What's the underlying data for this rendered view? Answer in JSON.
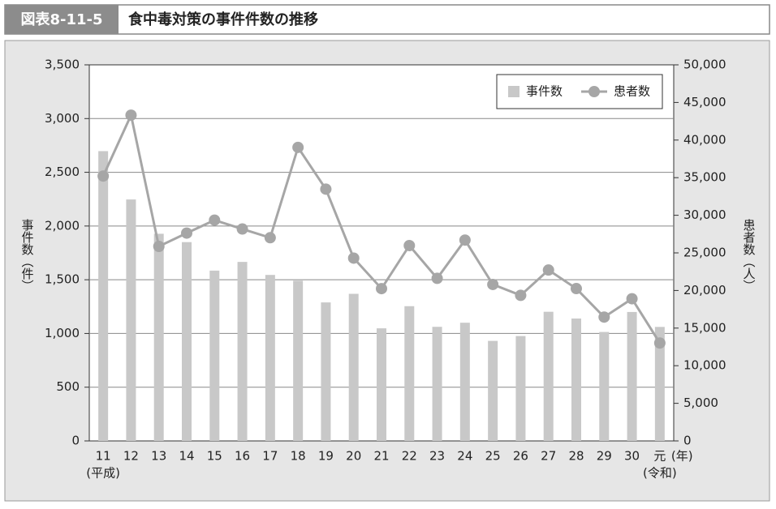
{
  "header": {
    "label": "図表8-11-5",
    "title": "食中毒対策の事件件数の推移"
  },
  "chart_data": {
    "type": "bar-line",
    "categories": [
      "11",
      "12",
      "13",
      "14",
      "15",
      "16",
      "17",
      "18",
      "19",
      "20",
      "21",
      "22",
      "23",
      "24",
      "25",
      "26",
      "27",
      "28",
      "29",
      "30",
      "元"
    ],
    "era_labels": [
      "(平成)",
      "(令和)"
    ],
    "x_unit": "(年)",
    "ylabel": "事件数（件）",
    "y2label": "患者数（人）",
    "series": [
      {
        "name": "事件数",
        "color": "#c8c8c8",
        "values": [
          2697,
          2247,
          1928,
          1850,
          1585,
          1666,
          1545,
          1491,
          1289,
          1369,
          1048,
          1254,
          1062,
          1100,
          931,
          976,
          1202,
          1139,
          1014,
          1200,
          1061
        ]
      },
      {
        "name": "患者数",
        "color": "#a6a6a6",
        "axis": "y2",
        "values": [
          35214,
          43307,
          25862,
          27629,
          29355,
          28175,
          27019,
          39026,
          33477,
          24303,
          20249,
          25972,
          21616,
          26699,
          20802,
          19355,
          22718,
          20252,
          16464,
          18900,
          13018
        ]
      }
    ],
    "ylim": [
      0,
      3500
    ],
    "yticks": [
      0,
      500,
      {
        "value": 1000,
        "label": "1,000"
      },
      {
        "value": 1500,
        "label": "1,500"
      },
      {
        "value": 2000,
        "label": "2,000"
      },
      {
        "value": 2500,
        "label": "2,500"
      },
      {
        "value": 3000,
        "label": "3,000"
      },
      {
        "value": 3500,
        "label": "3,500"
      }
    ],
    "y2lim": [
      0,
      50000
    ],
    "y2ticks": [
      0,
      {
        "value": 5000,
        "label": "5,000"
      },
      {
        "value": 10000,
        "label": "10,000"
      },
      {
        "value": 15000,
        "label": "15,000"
      },
      {
        "value": 20000,
        "label": "20,000"
      },
      {
        "value": 25000,
        "label": "25,000"
      },
      {
        "value": 30000,
        "label": "30,000"
      },
      {
        "value": 35000,
        "label": "35,000"
      },
      {
        "value": 40000,
        "label": "40,000"
      },
      {
        "value": 45000,
        "label": "45,000"
      },
      {
        "value": 50000,
        "label": "50,000"
      }
    ],
    "grid": true,
    "legend": "top-right"
  }
}
